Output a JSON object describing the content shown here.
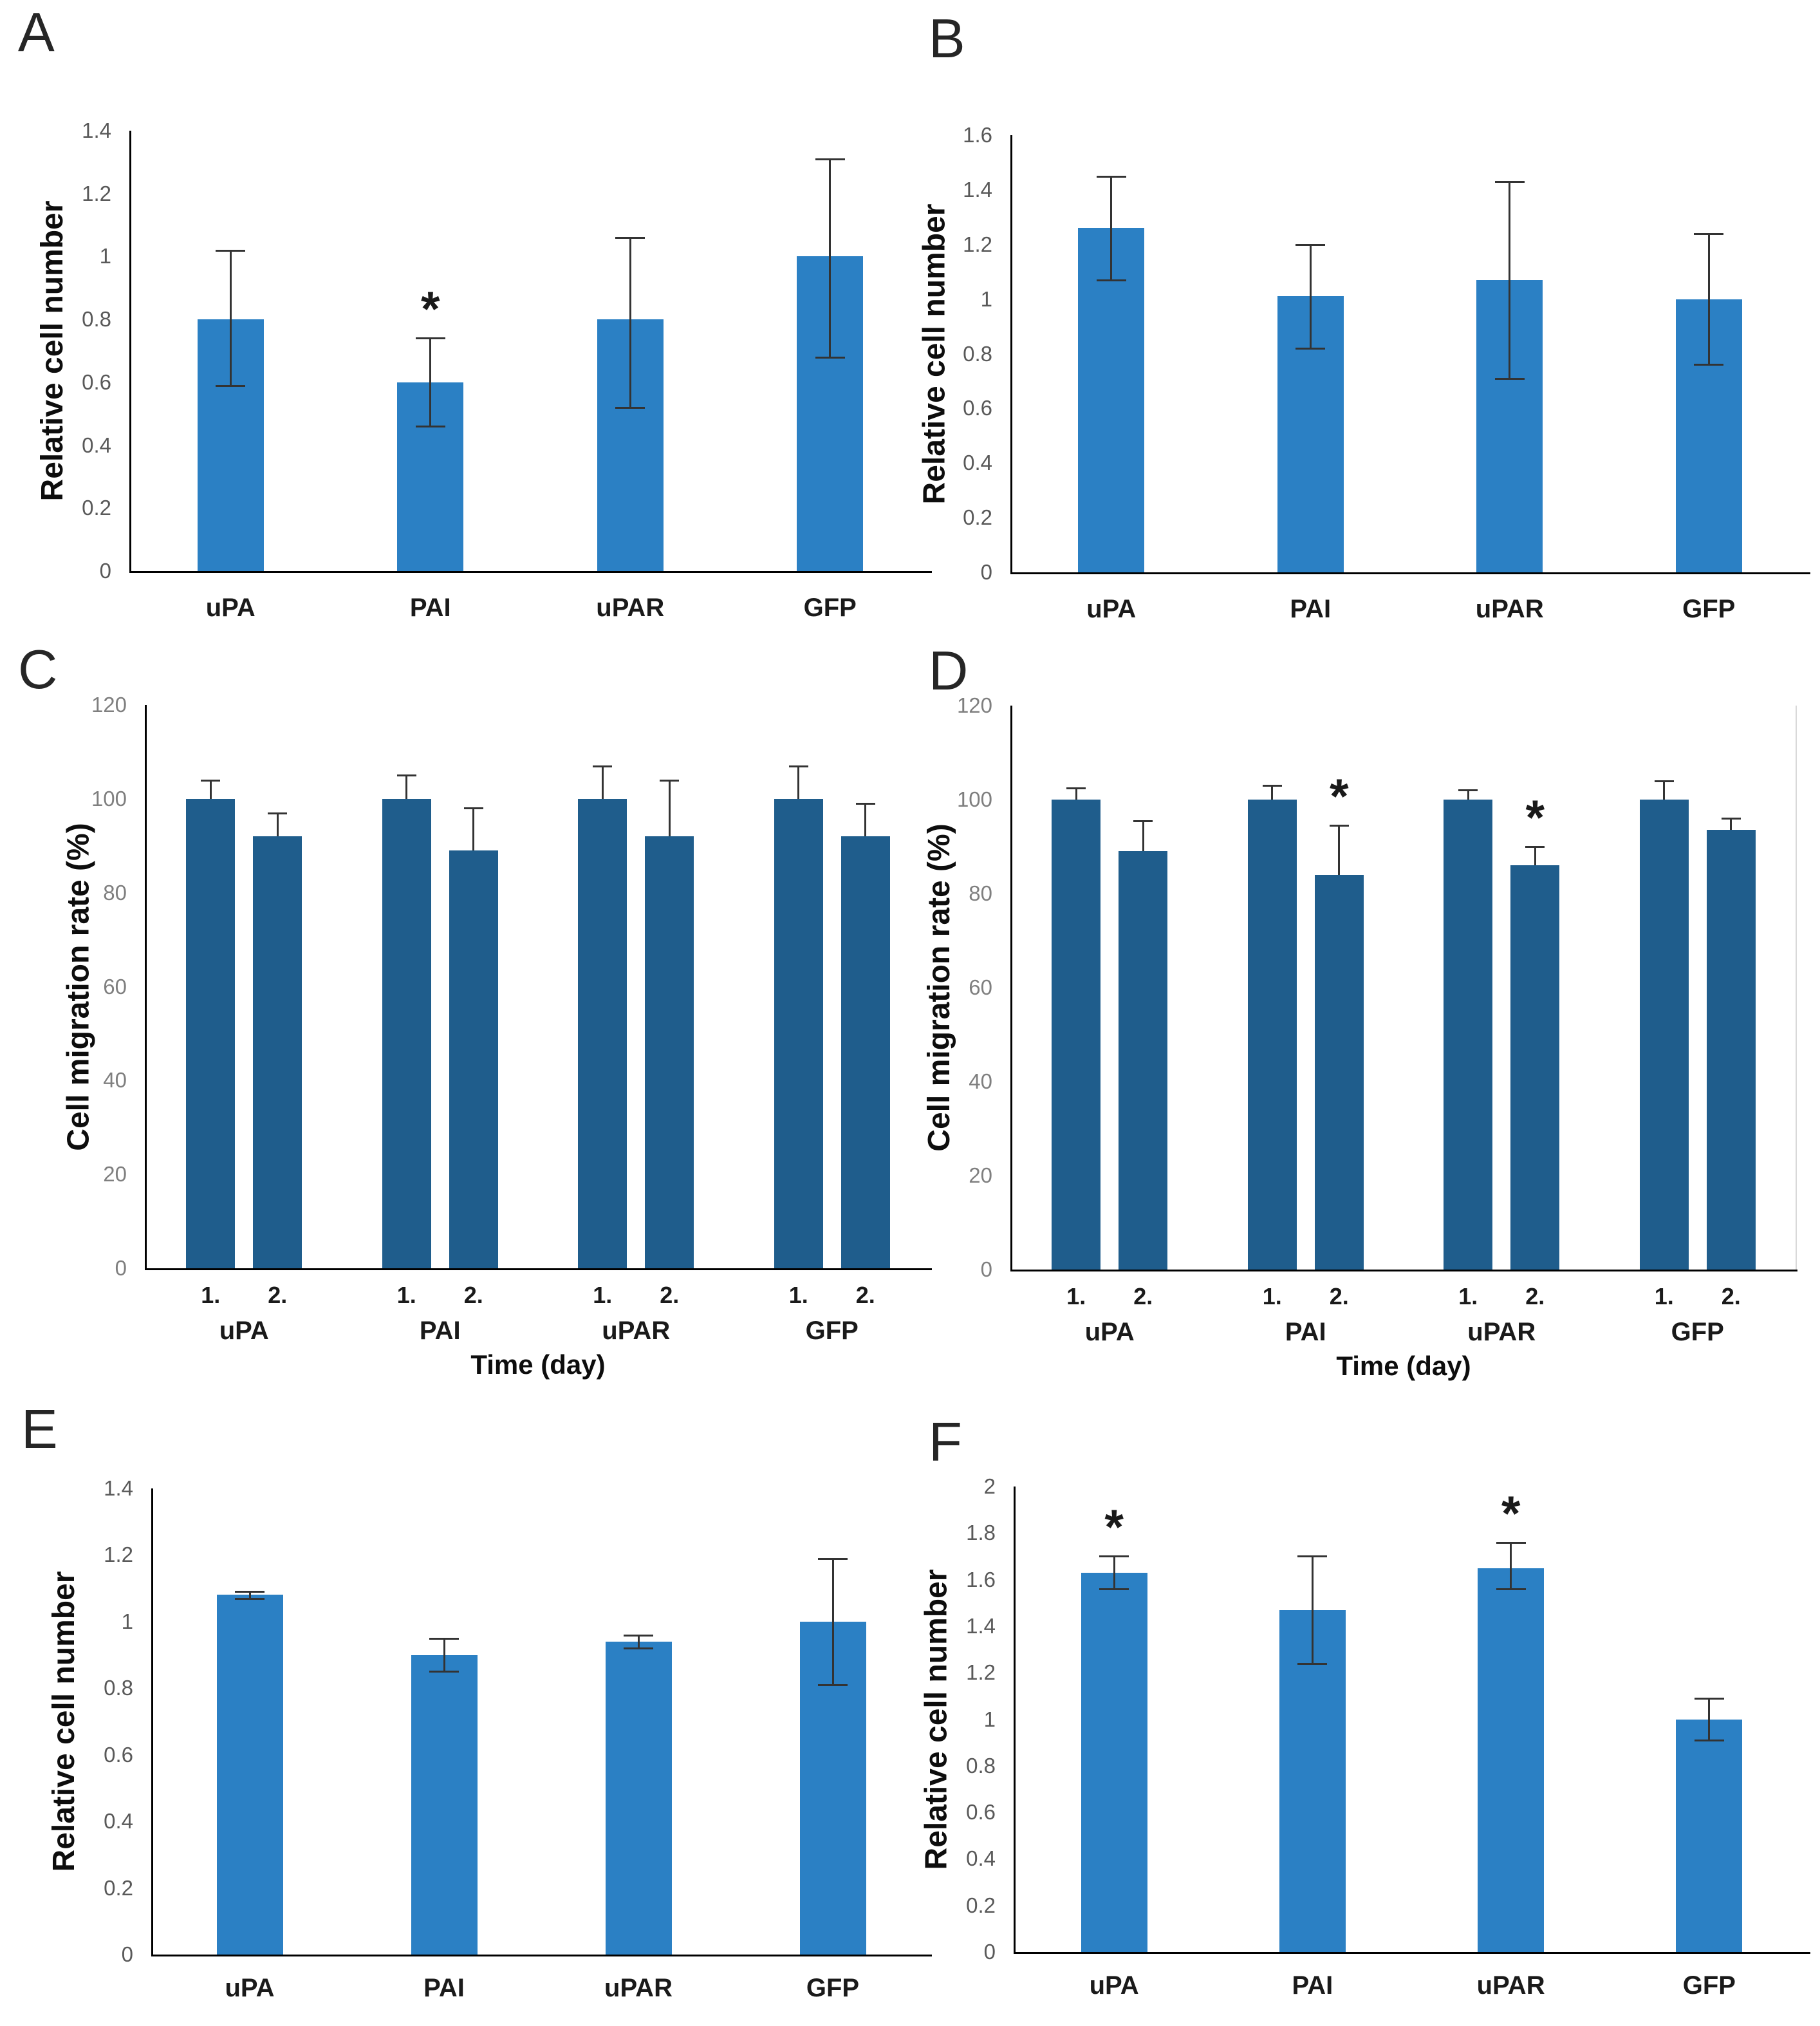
{
  "figure_title": "",
  "background_color": "#ffffff",
  "chart_data": [
    {
      "id": "A",
      "type": "bar",
      "panel_label": "A",
      "ylabel": "Relative cell number",
      "xlabel": "",
      "ylim": [
        0,
        1.4
      ],
      "yticks": [
        "0",
        "0.2",
        "0.4",
        "0.6",
        "0.8",
        "1",
        "1.2",
        "1.4"
      ],
      "grid": false,
      "legend": "none",
      "bar_color": "#2b80c4",
      "tick_color": "#595959",
      "categories": [
        "uPA",
        "PAI",
        "uPAR",
        "GFP"
      ],
      "values": [
        0.8,
        0.6,
        0.8,
        1.0
      ],
      "err_up": [
        0.22,
        0.14,
        0.26,
        0.31
      ],
      "err_down": [
        0.21,
        0.14,
        0.28,
        0.32
      ],
      "significance": [
        "",
        "*",
        "",
        ""
      ]
    },
    {
      "id": "B",
      "type": "bar",
      "panel_label": "B",
      "ylabel": "Relative cell number",
      "xlabel": "",
      "ylim": [
        0,
        1.6
      ],
      "yticks": [
        "0",
        "0.2",
        "0.4",
        "0.6",
        "0.8",
        "1",
        "1.2",
        "1.4",
        "1.6"
      ],
      "grid": false,
      "legend": "none",
      "bar_color": "#2b80c4",
      "tick_color": "#595959",
      "categories": [
        "uPA",
        "PAI",
        "uPAR",
        "GFP"
      ],
      "values": [
        1.26,
        1.01,
        1.07,
        1.0
      ],
      "err_up": [
        0.19,
        0.19,
        0.36,
        0.24
      ],
      "err_down": [
        0.19,
        0.19,
        0.36,
        0.24
      ],
      "significance": [
        "",
        "",
        "",
        ""
      ]
    },
    {
      "id": "C",
      "type": "grouped-bar",
      "panel_label": "C",
      "ylabel": "Cell migration rate (%)",
      "xlabel": "Time (day)",
      "ylim": [
        0,
        120
      ],
      "yticks": [
        "0",
        "20",
        "40",
        "60",
        "80",
        "100",
        "120"
      ],
      "grid": false,
      "legend": "none",
      "bar_color": "#1f5d8c",
      "tick_color": "#7f7f7f",
      "categories": [
        "uPA",
        "PAI",
        "uPAR",
        "GFP"
      ],
      "series": [
        {
          "name": "1.",
          "values": [
            100,
            100,
            100,
            100
          ],
          "err_up": [
            4,
            5,
            7,
            7
          ],
          "significance": [
            "",
            "",
            "",
            ""
          ]
        },
        {
          "name": "2.",
          "values": [
            92,
            89,
            92,
            92
          ],
          "err_up": [
            5,
            9,
            12,
            7
          ],
          "significance": [
            "",
            "",
            "",
            ""
          ]
        }
      ]
    },
    {
      "id": "D",
      "type": "grouped-bar",
      "panel_label": "D",
      "ylabel": "Cell migration rate (%)",
      "xlabel": "Time (day)",
      "ylim": [
        0,
        120
      ],
      "yticks": [
        "0",
        "20",
        "40",
        "60",
        "80",
        "100",
        "120"
      ],
      "grid": false,
      "legend": "none",
      "bar_color": "#1f5d8c",
      "tick_color": "#7f7f7f",
      "categories": [
        "uPA",
        "PAI",
        "uPAR",
        "GFP"
      ],
      "series": [
        {
          "name": "1.",
          "values": [
            100,
            100,
            100,
            100
          ],
          "err_up": [
            2.5,
            3,
            2,
            4
          ],
          "significance": [
            "",
            "",
            "",
            ""
          ]
        },
        {
          "name": "2.",
          "values": [
            89,
            84,
            86,
            93.5
          ],
          "err_up": [
            6.5,
            10.5,
            4,
            2.5
          ],
          "significance": [
            "",
            "*",
            "*",
            ""
          ]
        }
      ]
    },
    {
      "id": "E",
      "type": "bar",
      "panel_label": "E",
      "ylabel": "Relative cell number",
      "xlabel": "",
      "ylim": [
        0,
        1.4
      ],
      "yticks": [
        "0",
        "0.2",
        "0.4",
        "0.6",
        "0.8",
        "1",
        "1.2",
        "1.4"
      ],
      "grid": false,
      "legend": "none",
      "bar_color": "#2b80c4",
      "tick_color": "#595959",
      "categories": [
        "uPA",
        "PAI",
        "uPAR",
        "GFP"
      ],
      "values": [
        1.08,
        0.9,
        0.94,
        1.0
      ],
      "err_up": [
        0.01,
        0.05,
        0.02,
        0.19
      ],
      "err_down": [
        0.01,
        0.05,
        0.02,
        0.19
      ],
      "significance": [
        "",
        "",
        "",
        ""
      ]
    },
    {
      "id": "F",
      "type": "bar",
      "panel_label": "F",
      "ylabel": "Relative cell number",
      "xlabel": "",
      "ylim": [
        0,
        2
      ],
      "yticks": [
        "0",
        "0.2",
        "0.4",
        "0.6",
        "0.8",
        "1",
        "1.2",
        "1.4",
        "1.6",
        "1.8",
        "2"
      ],
      "grid": false,
      "legend": "none",
      "bar_color": "#2b80c4",
      "tick_color": "#595959",
      "categories": [
        "uPA",
        "PAI",
        "uPAR",
        "GFP"
      ],
      "values": [
        1.63,
        1.47,
        1.65,
        1.0
      ],
      "err_up": [
        0.07,
        0.23,
        0.11,
        0.09
      ],
      "err_down": [
        0.07,
        0.23,
        0.09,
        0.09
      ],
      "significance": [
        "*",
        "",
        "*",
        ""
      ]
    }
  ]
}
